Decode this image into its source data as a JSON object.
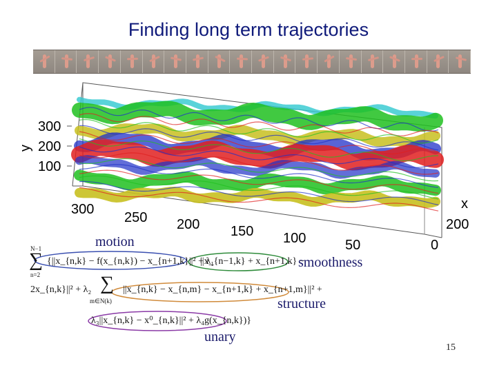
{
  "slide": {
    "title": "Finding long term trajectories",
    "page_number": "15"
  },
  "filmstrip": {
    "frame_count": 20
  },
  "plot": {
    "y_axis": {
      "label": "y",
      "ticks": [
        "300",
        "200",
        "100"
      ]
    },
    "x_axis": {
      "label": "x",
      "ticks": [
        "300",
        "250",
        "200",
        "150",
        "100",
        "50",
        "0"
      ]
    },
    "t_axis": {
      "ticks": [
        "200"
      ]
    }
  },
  "labels": {
    "motion": "motion",
    "smoothness": "smoothness",
    "structure": "structure",
    "unary": "unary"
  },
  "equation": {
    "sum1_top": "N−1",
    "sum1_bottom": "n=2",
    "line1_motion": "{||x_{n,k} − f(x_{n,k}) − x_{n+1,k}||² + λ₁",
    "line1_smooth": "||x_{n−1,k} + x_{n+1,k} −",
    "line2_start": "2x_{n,k}||² + λ₂",
    "sum2_bottom": "m∈N(k)",
    "line2_structure": "||x_{n,k} − x_{n,m} − x_{n+1,k} + x_{n+1,m}||² +",
    "line3_unary": "λ₃||x_{n,k} − x⁰_{n,k}||² + λ₄g(x_{n,k})}"
  },
  "colors": {
    "title": "#0f1a7a",
    "motion_ellipse": "#3a4fb0",
    "smoothness_ellipse": "#2e8b3a",
    "structure_ellipse": "#d08a3a",
    "unary_ellipse": "#8a3aa6",
    "traj_red": "#e02020",
    "traj_blue": "#2030c8",
    "traj_green": "#20c020",
    "traj_yellow": "#c8c020",
    "traj_cyan": "#30c8d0"
  }
}
